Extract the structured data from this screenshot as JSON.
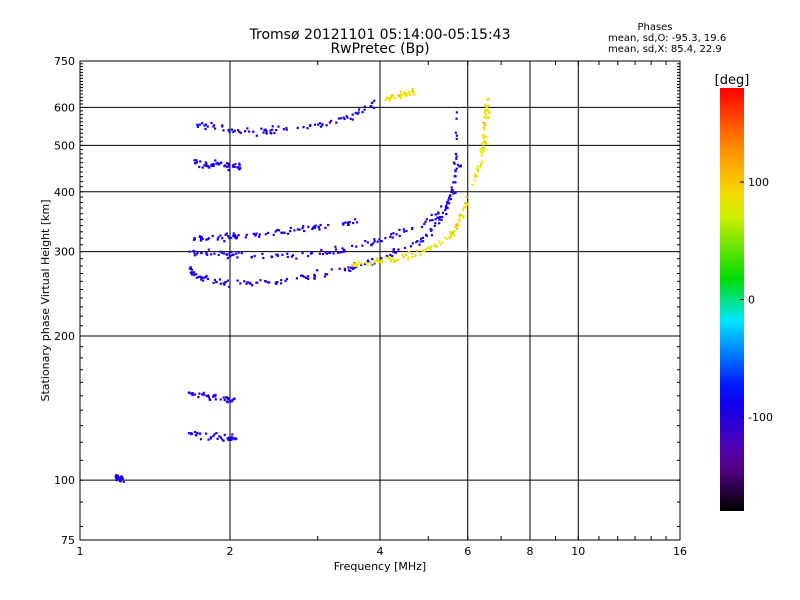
{
  "chart_data": {
    "type": "scatter",
    "title": "Tromsø 20121101 05:14:00-05:15:43",
    "subtitle": "RwPretec (Bp)",
    "xlabel": "Frequency [MHz]",
    "ylabel": "Stationary phase Virtual Height [km]",
    "xscale": "log",
    "yscale": "log",
    "xlim": [
      1,
      16
    ],
    "ylim": [
      75,
      750
    ],
    "xticks": [
      1,
      2,
      4,
      6,
      8,
      10,
      16
    ],
    "yticks": [
      75,
      100,
      200,
      300,
      400,
      500,
      600,
      750
    ],
    "xgrid": [
      2,
      4,
      6,
      8,
      10
    ],
    "ygrid": [
      100,
      200,
      300,
      400,
      500,
      600
    ],
    "grid": true,
    "legend": {
      "title": "Phases",
      "lines": [
        "mean, sd,O: -95.3, 19.6",
        "mean, sd,X:  85.4, 22.9"
      ],
      "position": "top-right"
    },
    "colorbar": {
      "label": "[deg]",
      "ticks": [
        100,
        0,
        -100
      ],
      "range": [
        -180,
        180
      ],
      "colormap": "rainbow"
    },
    "series": [
      {
        "name": "O",
        "mean_phase": -95.3,
        "sd_phase": 19.6,
        "traces": [
          {
            "x": [
              1.7,
              1.9,
              2.1,
              2.4,
              2.8,
              3.2,
              3.6,
              3.9
            ],
            "y": [
              555,
              545,
              535,
              535,
              545,
              558,
              580,
              615
            ]
          },
          {
            "x": [
              1.7,
              1.8,
              1.9,
              2.0,
              2.1
            ],
            "y": [
              460,
              455,
              460,
              450,
              450
            ]
          },
          {
            "x": [
              1.65,
              1.7,
              1.8,
              2.0,
              2.3,
              2.6,
              3.0,
              3.5,
              4.0,
              4.5,
              5.0,
              5.4,
              5.65,
              5.72
            ],
            "y": [
              275,
              268,
              262,
              258,
              258,
              262,
              268,
              278,
              290,
              305,
              325,
              360,
              430,
              590
            ]
          },
          {
            "x": [
              1.65,
              1.8,
              2.0,
              2.3,
              2.7,
              3.2,
              3.7,
              4.2,
              4.8,
              5.3,
              5.6,
              5.8
            ],
            "y": [
              300,
              298,
              296,
              295,
              295,
              300,
              310,
              322,
              340,
              360,
              400,
              470
            ]
          },
          {
            "x": [
              1.65,
              1.8,
              2.0,
              2.2,
              2.5,
              2.9,
              3.3,
              3.6
            ],
            "y": [
              318,
              320,
              322,
              325,
              330,
              335,
              340,
              345
            ]
          },
          {
            "x": [
              1.65,
              1.8,
              1.95,
              2.05
            ],
            "y": [
              152,
              150,
              148,
              146
            ]
          },
          {
            "x": [
              1.65,
              1.8,
              1.95,
              2.05
            ],
            "y": [
              125,
              124,
              123,
              122
            ]
          },
          {
            "x": [
              1.18,
              1.2,
              1.22
            ],
            "y": [
              102,
              101,
              101
            ]
          }
        ]
      },
      {
        "name": "X",
        "mean_phase": 85.4,
        "sd_phase": 22.9,
        "traces": [
          {
            "x": [
              3.5,
              3.8,
              4.1,
              4.5,
              4.9,
              5.3,
              5.6,
              5.8,
              6.0
            ],
            "y": [
              280,
              283,
              287,
              293,
              300,
              312,
              328,
              352,
              390
            ]
          },
          {
            "x": [
              6.2,
              6.35,
              6.45,
              6.5,
              6.55,
              6.6
            ],
            "y": [
              420,
              455,
              500,
              545,
              590,
              630
            ]
          },
          {
            "x": [
              4.1,
              4.3,
              4.5,
              4.7
            ],
            "y": [
              625,
              630,
              640,
              650
            ]
          }
        ]
      }
    ]
  }
}
